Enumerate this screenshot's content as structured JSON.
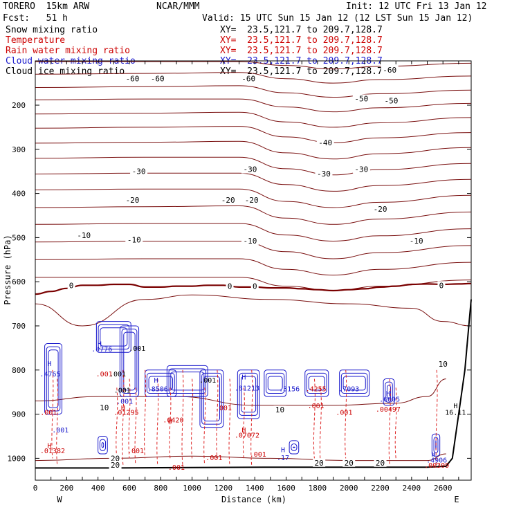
{
  "header": {
    "model": "TORERO  15km ARW",
    "center": "NCAR/MMM",
    "init": "Init: 12 UTC Fri 13 Jan 12",
    "fcst": "Fcst:   51 h",
    "valid": "Valid: 15 UTC Sun 15 Jan 12 (12 LST Sun 15 Jan 12)"
  },
  "fields": [
    {
      "name": "Snow mixing ratio",
      "xy": "XY=  23.5,121.7 to 209.7,128.7",
      "color": "#000000"
    },
    {
      "name": "Temperature",
      "xy": "XY=  23.5,121.7 to 209.7,128.7",
      "color": "#cc0000"
    },
    {
      "name": "Rain water mixing ratio",
      "xy": "XY=  23.5,121.7 to 209.7,128.7",
      "color": "#cc0000"
    },
    {
      "name": "Cloud water mixing ratio",
      "xy": "XY=  23.5,121.7 to 209.7,128.7",
      "color": "#1a1acc"
    },
    {
      "name": "Cloud ice mixing ratio",
      "xy": "XY=  23.5,121.7 to 209.7,128.7",
      "color": "#000000"
    }
  ],
  "colors": {
    "temperature": "#7a1010",
    "freezing": "#7a0000",
    "rain": "#dd2222",
    "cloud_water": "#1a1acc",
    "terrain": "#000000"
  },
  "chart_data": {
    "type": "contour",
    "xlabel": "Distance (km)",
    "ylabel": "Pressure (hPa)",
    "xlim": [
      0,
      2780
    ],
    "ylim": [
      1030,
      100
    ],
    "xticks": [
      0,
      100,
      200,
      300,
      400,
      500,
      600,
      700,
      800,
      900,
      1000,
      1100,
      1200,
      1300,
      1400,
      1500,
      1600,
      1700,
      1800,
      1900,
      2000,
      2100,
      2200,
      2300,
      2400,
      2500,
      2600,
      2700
    ],
    "xticklabels": [
      "0",
      "200",
      "400",
      "600",
      "800",
      "1000",
      "1200",
      "1400",
      "1600",
      "1800",
      "2000",
      "2200",
      "2400",
      "2600"
    ],
    "xticklabel_values": [
      0,
      200,
      400,
      600,
      800,
      1000,
      1200,
      1400,
      1600,
      1800,
      2000,
      2200,
      2400,
      2600
    ],
    "yticks": [
      200,
      300,
      400,
      500,
      600,
      700,
      800,
      900,
      1000
    ],
    "yticklabels": [
      "200",
      "300",
      "400",
      "500",
      "600",
      "700",
      "800",
      "900",
      "1000"
    ],
    "direction_labels": {
      "left": "W",
      "right": "E"
    },
    "temperature_contours": {
      "interval_C": 5,
      "labels": [
        {
          "text": "-60",
          "x": 620,
          "p": 140
        },
        {
          "text": "-60",
          "x": 780,
          "p": 140
        },
        {
          "text": "-60",
          "x": 1360,
          "p": 140
        },
        {
          "text": "-60",
          "x": 2260,
          "p": 120
        },
        {
          "text": "-50",
          "x": 2080,
          "p": 185
        },
        {
          "text": "-50",
          "x": 2270,
          "p": 190
        },
        {
          "text": "-40",
          "x": 1850,
          "p": 285
        },
        {
          "text": "-30",
          "x": 660,
          "p": 350
        },
        {
          "text": "-30",
          "x": 1370,
          "p": 345
        },
        {
          "text": "-30",
          "x": 1840,
          "p": 355
        },
        {
          "text": "-30",
          "x": 2080,
          "p": 345
        },
        {
          "text": "-20",
          "x": 620,
          "p": 415
        },
        {
          "text": "-20",
          "x": 1230,
          "p": 415
        },
        {
          "text": "-20",
          "x": 1380,
          "p": 415
        },
        {
          "text": "-20",
          "x": 2200,
          "p": 435
        },
        {
          "text": "-10",
          "x": 310,
          "p": 495
        },
        {
          "text": "-10",
          "x": 630,
          "p": 505
        },
        {
          "text": "-10",
          "x": 1370,
          "p": 507
        },
        {
          "text": "-10",
          "x": 2430,
          "p": 507
        },
        {
          "text": "0",
          "x": 230,
          "p": 608
        },
        {
          "text": "0",
          "x": 1240,
          "p": 610
        },
        {
          "text": "0",
          "x": 1400,
          "p": 610
        },
        {
          "text": "0",
          "x": 2590,
          "p": 608
        },
        {
          "text": "10",
          "x": 2600,
          "p": 786
        },
        {
          "text": "10",
          "x": 440,
          "p": 885
        },
        {
          "text": "10",
          "x": 1560,
          "p": 890
        },
        {
          "text": "20",
          "x": 510,
          "p": 1000
        },
        {
          "text": "20",
          "x": 1810,
          "p": 1010
        },
        {
          "text": "20",
          "x": 2000,
          "p": 1010
        },
        {
          "text": "20",
          "x": 2200,
          "p": 1010
        },
        {
          "text": "20",
          "x": 510,
          "p": 1015
        }
      ]
    },
    "freezing_level": [
      [
        0,
        628
      ],
      [
        100,
        622
      ],
      [
        200,
        615
      ],
      [
        300,
        608
      ],
      [
        400,
        608
      ],
      [
        500,
        606
      ],
      [
        600,
        606
      ],
      [
        700,
        612
      ],
      [
        800,
        612
      ],
      [
        900,
        610
      ],
      [
        1000,
        610
      ],
      [
        1100,
        608
      ],
      [
        1200,
        608
      ],
      [
        1300,
        612
      ],
      [
        1400,
        612
      ],
      [
        1500,
        614
      ],
      [
        1600,
        614
      ],
      [
        1700,
        616
      ],
      [
        1800,
        618
      ],
      [
        1900,
        620
      ],
      [
        2000,
        618
      ],
      [
        2100,
        616
      ],
      [
        2200,
        612
      ],
      [
        2300,
        610
      ],
      [
        2400,
        606
      ],
      [
        2500,
        605
      ],
      [
        2600,
        606
      ],
      [
        2700,
        605
      ],
      [
        2780,
        604
      ]
    ],
    "terrain_profile": [
      [
        0,
        1022
      ],
      [
        500,
        1022
      ],
      [
        1000,
        1021
      ],
      [
        1500,
        1020
      ],
      [
        2000,
        1020
      ],
      [
        2500,
        1020
      ],
      [
        2620,
        1018
      ],
      [
        2660,
        1000
      ],
      [
        2700,
        900
      ],
      [
        2740,
        800
      ],
      [
        2770,
        680
      ],
      [
        2780,
        640
      ]
    ],
    "maxima_labels": [
      {
        "text": "H",
        "x": 90,
        "p": 785,
        "color": "#1a1acc"
      },
      {
        "text": ".4765",
        "x": 95,
        "p": 808,
        "color": "#1a1acc"
      },
      {
        "text": "H",
        "x": 410,
        "p": 740,
        "color": "#1a1acc"
      },
      {
        "text": ".4776",
        "x": 425,
        "p": 752,
        "color": "#1a1acc"
      },
      {
        "text": ".001",
        "x": 650,
        "p": 750,
        "color": "#000000"
      },
      {
        "text": ".001",
        "x": 440,
        "p": 808,
        "color": "#cc0000"
      },
      {
        "text": ".001",
        "x": 525,
        "p": 808,
        "color": "#000000"
      },
      {
        "text": "H",
        "x": 770,
        "p": 822,
        "color": "#1a1acc"
      },
      {
        "text": ".8506",
        "x": 780,
        "p": 842,
        "color": "#1a1acc"
      },
      {
        "text": ".001",
        "x": 1100,
        "p": 822,
        "color": "#000000"
      },
      {
        "text": ".001",
        "x": 555,
        "p": 845,
        "color": "#000000"
      },
      {
        "text": "H",
        "x": 1330,
        "p": 815,
        "color": "#1a1acc"
      },
      {
        "text": ".81213",
        "x": 1350,
        "p": 840,
        "color": "#1a1acc"
      },
      {
        "text": ".3156",
        "x": 1620,
        "p": 842,
        "color": "#1a1acc"
      },
      {
        "text": ".4255",
        "x": 1790,
        "p": 842,
        "color": "#cc0000"
      },
      {
        "text": ".7093",
        "x": 2000,
        "p": 842,
        "color": "#1a1acc"
      },
      {
        "text": "H",
        "x": 2250,
        "p": 852,
        "color": "#1a1acc"
      },
      {
        "text": ".6005",
        "x": 2260,
        "p": 865,
        "color": "#1a1acc"
      },
      {
        "text": ".001",
        "x": 570,
        "p": 870,
        "color": "#1a1acc"
      },
      {
        "text": "H",
        "x": 560,
        "p": 885,
        "color": "#cc0000"
      },
      {
        "text": ".01295",
        "x": 580,
        "p": 895,
        "color": "#cc0000"
      },
      {
        "text": ".001",
        "x": 85,
        "p": 895,
        "color": "#cc0000"
      },
      {
        "text": ".001",
        "x": 1200,
        "p": 885,
        "color": "#cc0000"
      },
      {
        "text": ".001",
        "x": 1790,
        "p": 880,
        "color": "#cc0000"
      },
      {
        "text": ".001",
        "x": 1970,
        "p": 895,
        "color": "#cc0000"
      },
      {
        "text": ".00497",
        "x": 2250,
        "p": 888,
        "color": "#cc0000"
      },
      {
        "text": "H",
        "x": 2680,
        "p": 880,
        "color": "#000000"
      },
      {
        "text": "16.11",
        "x": 2680,
        "p": 895,
        "color": "#000000"
      },
      {
        "text": "H",
        "x": 860,
        "p": 915,
        "color": "#cc0000"
      },
      {
        "text": ".0420",
        "x": 880,
        "p": 912,
        "color": "#cc0000"
      },
      {
        "text": ".001",
        "x": 160,
        "p": 935,
        "color": "#1a1acc"
      },
      {
        "text": "H",
        "x": 1330,
        "p": 935,
        "color": "#cc0000"
      },
      {
        "text": ".07072",
        "x": 1350,
        "p": 947,
        "color": "#cc0000"
      },
      {
        "text": "H",
        "x": 90,
        "p": 970,
        "color": "#cc0000"
      },
      {
        "text": ".01382",
        "x": 110,
        "p": 982,
        "color": "#cc0000"
      },
      {
        "text": ".001",
        "x": 640,
        "p": 982,
        "color": "#cc0000"
      },
      {
        "text": ".001",
        "x": 1420,
        "p": 990,
        "color": "#cc0000"
      },
      {
        "text": "H",
        "x": 1580,
        "p": 980,
        "color": "#1a1acc"
      },
      {
        "text": ".17",
        "x": 1580,
        "p": 998,
        "color": "#1a1acc"
      },
      {
        "text": "H",
        "x": 2540,
        "p": 990,
        "color": "#1a1acc"
      },
      {
        "text": ".4906",
        "x": 2560,
        "p": 1003,
        "color": "#1a1acc"
      },
      {
        "text": ".001",
        "x": 900,
        "p": 1020,
        "color": "#cc0000"
      },
      {
        "text": ".001",
        "x": 1140,
        "p": 998,
        "color": "#cc0000"
      },
      {
        "text": ".00309",
        "x": 2560,
        "p": 1015,
        "color": "#cc0000"
      }
    ]
  }
}
